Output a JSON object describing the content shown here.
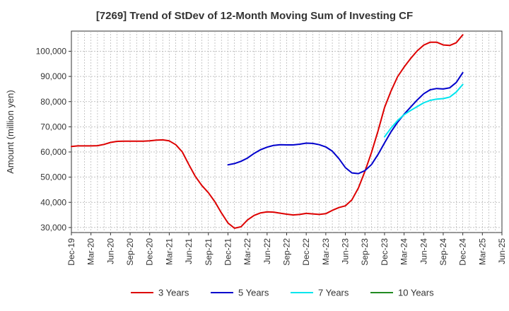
{
  "chart_data": {
    "type": "line",
    "title": "[7269]  Trend of StDev of 12-Month Moving Sum of Investing CF",
    "xlabel": "",
    "ylabel": "Amount (million yen)",
    "ylim": [
      28000,
      108000
    ],
    "yticks": [
      30000,
      40000,
      50000,
      60000,
      70000,
      80000,
      90000,
      100000
    ],
    "ytick_labels": [
      "30,000",
      "40,000",
      "50,000",
      "60,000",
      "70,000",
      "80,000",
      "90,000",
      "100,000"
    ],
    "xticks": [
      "Dec-19",
      "Mar-20",
      "Jun-20",
      "Sep-20",
      "Dec-20",
      "Mar-21",
      "Jun-21",
      "Sep-21",
      "Dec-21",
      "Mar-22",
      "Jun-22",
      "Sep-22",
      "Dec-22",
      "Mar-23",
      "Jun-23",
      "Sep-23",
      "Dec-23",
      "Mar-24",
      "Jun-24",
      "Sep-24",
      "Dec-24",
      "Mar-25",
      "Jun-25"
    ],
    "grid": true,
    "legend_position": "bottom",
    "series": [
      {
        "name": "3 Years",
        "color": "#dd0000",
        "x": [
          "2019-12",
          "2020-01",
          "2020-02",
          "2020-03",
          "2020-04",
          "2020-05",
          "2020-06",
          "2020-07",
          "2020-08",
          "2020-09",
          "2020-10",
          "2020-11",
          "2020-12",
          "2021-01",
          "2021-02",
          "2021-03",
          "2021-04",
          "2021-05",
          "2021-06",
          "2021-07",
          "2021-08",
          "2021-09",
          "2021-10",
          "2021-11",
          "2021-12",
          "2022-01",
          "2022-02",
          "2022-03",
          "2022-04",
          "2022-05",
          "2022-06",
          "2022-07",
          "2022-08",
          "2022-09",
          "2022-10",
          "2022-11",
          "2022-12",
          "2023-01",
          "2023-02",
          "2023-03",
          "2023-04",
          "2023-05",
          "2023-06",
          "2023-07",
          "2023-08",
          "2023-09",
          "2023-10",
          "2023-11",
          "2023-12",
          "2024-01",
          "2024-02",
          "2024-03",
          "2024-04",
          "2024-05",
          "2024-06",
          "2024-07",
          "2024-08",
          "2024-09",
          "2024-10",
          "2024-11",
          "2024-12"
        ],
        "values": [
          62200,
          62400,
          62400,
          62400,
          62500,
          63000,
          63800,
          64200,
          64300,
          64300,
          64300,
          64300,
          64400,
          64700,
          64800,
          64400,
          62900,
          60000,
          55000,
          50300,
          46700,
          43800,
          40200,
          35800,
          31800,
          29700,
          30300,
          33000,
          34800,
          35800,
          36200,
          36100,
          35700,
          35300,
          35000,
          35200,
          35600,
          35400,
          35200,
          35500,
          36800,
          37900,
          38600,
          41000,
          45700,
          52300,
          59800,
          68300,
          77600,
          84200,
          89900,
          93700,
          97100,
          100100,
          102400,
          103600,
          103600,
          102500,
          102300,
          103400,
          106500
        ]
      },
      {
        "name": "5 Years",
        "color": "#0000cc",
        "x": [
          "2021-12",
          "2022-01",
          "2022-02",
          "2022-03",
          "2022-04",
          "2022-05",
          "2022-06",
          "2022-07",
          "2022-08",
          "2022-09",
          "2022-10",
          "2022-11",
          "2022-12",
          "2023-01",
          "2023-02",
          "2023-03",
          "2023-04",
          "2023-05",
          "2023-06",
          "2023-07",
          "2023-08",
          "2023-09",
          "2023-10",
          "2023-11",
          "2023-12",
          "2024-01",
          "2024-02",
          "2024-03",
          "2024-04",
          "2024-05",
          "2024-06",
          "2024-07",
          "2024-08",
          "2024-09",
          "2024-10",
          "2024-11",
          "2024-12"
        ],
        "values": [
          54900,
          55400,
          56300,
          57600,
          59400,
          60900,
          61900,
          62600,
          62900,
          62800,
          62800,
          63100,
          63500,
          63400,
          62900,
          62000,
          60300,
          57400,
          53800,
          51700,
          51400,
          52600,
          55000,
          59000,
          63600,
          68000,
          71800,
          75000,
          77800,
          80600,
          83100,
          84700,
          85200,
          85000,
          85500,
          87600,
          91500
        ]
      },
      {
        "name": "7 Years",
        "color": "#00e5ee",
        "x": [
          "2023-12",
          "2024-01",
          "2024-02",
          "2024-03",
          "2024-04",
          "2024-05",
          "2024-06",
          "2024-07",
          "2024-08",
          "2024-09",
          "2024-10",
          "2024-11",
          "2024-12"
        ],
        "values": [
          66000,
          69500,
          72500,
          74800,
          76500,
          78000,
          79500,
          80500,
          81000,
          81200,
          81800,
          83800,
          86800
        ]
      },
      {
        "name": "10 Years",
        "color": "#228b22",
        "x": [],
        "values": []
      }
    ]
  }
}
